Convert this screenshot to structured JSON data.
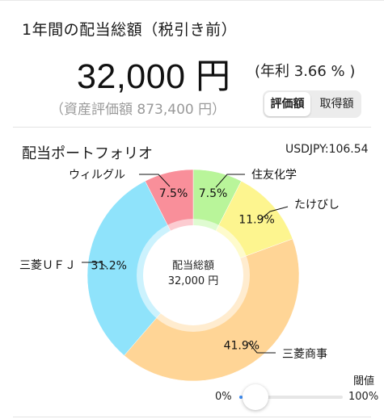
{
  "header": {
    "title": "1年間の配当総額（税引き前）",
    "amount": "32,000 円",
    "yield": "(年利 3.66 % )",
    "valuation": "（資産評価額 873,400 円）",
    "toggle": {
      "options": [
        "評価額",
        "取得額"
      ],
      "selected": "評価額"
    }
  },
  "portfolio": {
    "title": "配当ポートフォリオ",
    "fx": "USDJPY:106.54",
    "center_label": "配当総額",
    "center_value": "32,000 円"
  },
  "chart_data": {
    "type": "pie",
    "slices": [
      {
        "name": "住友化学",
        "value": 7.5,
        "label": "7.5%",
        "color": "#b9f59a"
      },
      {
        "name": "たけびし",
        "value": 11.9,
        "label": "11.9%",
        "color": "#fdf58f"
      },
      {
        "name": "三菱商事",
        "value": 41.9,
        "label": "41.9%",
        "color": "#ffd596"
      },
      {
        "name": "三菱ＵＦＪ",
        "value": 31.2,
        "label": "31.2%",
        "color": "#8fe3fb"
      },
      {
        "name": "ウィルグル",
        "value": 7.5,
        "label": "7.5%",
        "color": "#f98f9a"
      }
    ]
  },
  "threshold": {
    "label": "閾値",
    "min_label": "0%",
    "max_label": "100%",
    "value": 0.0,
    "accent": "#3d8ef7"
  }
}
